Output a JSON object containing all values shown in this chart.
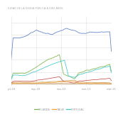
{
  "title": "ILIDAD DE LA DEUDA PÚBLICA A DIEZ AÑOS",
  "xtick_labels": [
    "jul-10",
    "sep-10",
    "nov-10",
    "ene-11",
    "mar-11"
  ],
  "legend_labels": [
    "IRLANDA",
    "ITALIA",
    "PORTUGAL"
  ],
  "line_colors": {
    "greece": "#5b7fc4",
    "ireland": "#7ab648",
    "italy": "#f0a030",
    "portugal": "#40c8c8",
    "spain": "#c85050",
    "belgium": "#d4a060",
    "france": "#e0c090",
    "extra": "#c0a080"
  },
  "background_color": "#ffffff",
  "grid_color": "#e0e0e0",
  "n_points": 200
}
